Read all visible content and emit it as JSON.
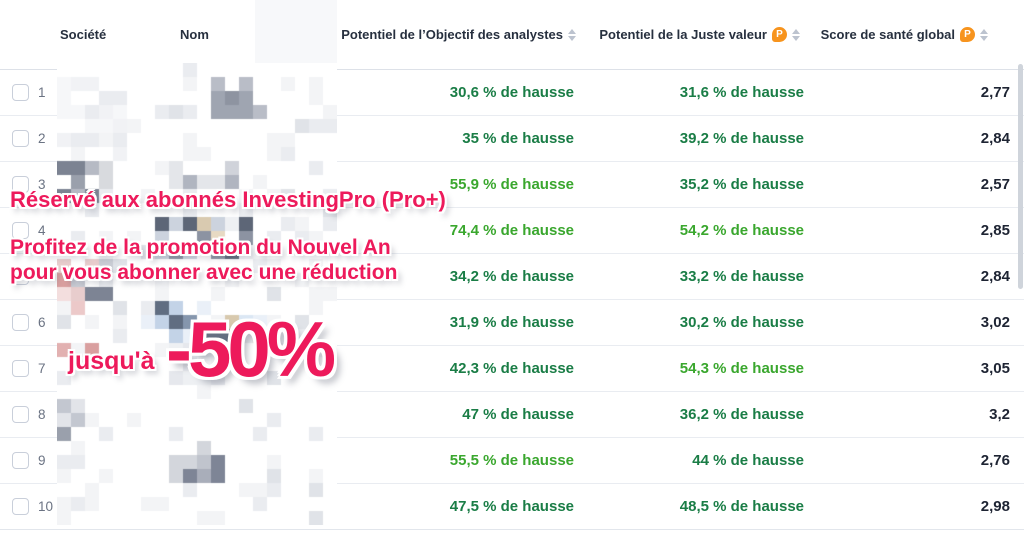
{
  "table": {
    "columns": {
      "company": "Société",
      "name": "Nom",
      "analyst": "Potentiel de l’Objectif des analystes",
      "fair": "Potentiel de la Juste valeur",
      "score": "Score de santé global"
    },
    "pro_badge_letter": "P",
    "colors": {
      "upside_dark_green": "#1a7d46",
      "upside_bright_green": "#3aa72e",
      "score_text": "#1e2433",
      "pro_orange": "#f7941e"
    },
    "rows": [
      {
        "rank": "1",
        "analyst": "30,6 % de hausse",
        "analyst_tone": "dark",
        "fair": "31,6 % de hausse",
        "fair_tone": "dark",
        "score": "2,77"
      },
      {
        "rank": "2",
        "analyst": "35 % de hausse",
        "analyst_tone": "dark",
        "fair": "39,2 % de hausse",
        "fair_tone": "dark",
        "score": "2,84"
      },
      {
        "rank": "3",
        "analyst": "55,9 % de hausse",
        "analyst_tone": "bright",
        "fair": "35,2 % de hausse",
        "fair_tone": "dark",
        "score": "2,57"
      },
      {
        "rank": "4",
        "analyst": "74,4 % de hausse",
        "analyst_tone": "bright",
        "fair": "54,2 % de hausse",
        "fair_tone": "bright",
        "score": "2,85"
      },
      {
        "rank": "5",
        "analyst": "34,2 % de hausse",
        "analyst_tone": "dark",
        "fair": "33,2 % de hausse",
        "fair_tone": "dark",
        "score": "2,84"
      },
      {
        "rank": "6",
        "analyst": "31,9 % de hausse",
        "analyst_tone": "dark",
        "fair": "30,2 % de hausse",
        "fair_tone": "dark",
        "score": "3,02"
      },
      {
        "rank": "7",
        "analyst": "42,3 % de hausse",
        "analyst_tone": "dark",
        "fair": "54,3 % de hausse",
        "fair_tone": "bright",
        "score": "3,05"
      },
      {
        "rank": "8",
        "analyst": "47 % de hausse",
        "analyst_tone": "dark",
        "fair": "36,2 % de hausse",
        "fair_tone": "dark",
        "score": "3,2"
      },
      {
        "rank": "9",
        "analyst": "55,5 % de hausse",
        "analyst_tone": "bright",
        "fair": "44 % de hausse",
        "fair_tone": "dark",
        "score": "2,76"
      },
      {
        "rank": "10",
        "analyst": "47,5 % de hausse",
        "analyst_tone": "dark",
        "fair": "48,5 % de hausse",
        "fair_tone": "dark",
        "score": "2,98"
      }
    ]
  },
  "promo": {
    "line1": "Réservé aux abonnés InvestingPro (Pro+)",
    "line2": "Profitez de la promotion du Nouvel An",
    "line3": "pour vous abonner avec une réduction",
    "upto": "jusqu'à",
    "discount": "-50%",
    "accent_color": "#ed1a5b"
  }
}
